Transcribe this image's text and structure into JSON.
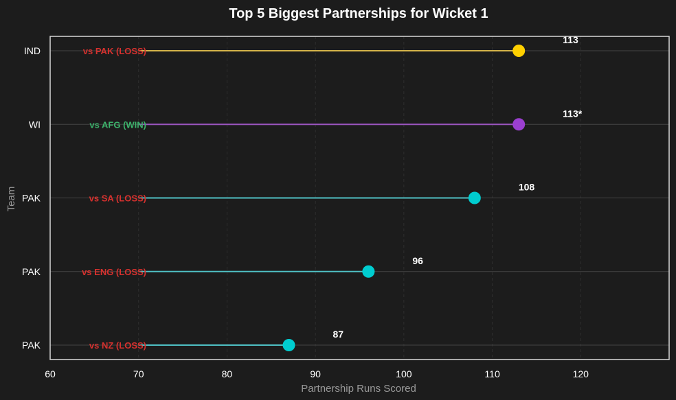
{
  "chart_data": {
    "type": "lollipop",
    "title": "Top 5 Biggest Partnerships for Wicket 1",
    "xlabel": "Partnership Runs Scored",
    "ylabel": "Team",
    "xlim": [
      60,
      130
    ],
    "xticks": [
      60,
      70,
      80,
      90,
      100,
      110,
      120
    ],
    "grid": true,
    "rows": [
      {
        "team": "IND",
        "runs": 113,
        "value_label": "113",
        "result": "vs PAK (LOSS)",
        "result_type": "loss",
        "color": "#ffd000",
        "stem_color": "#d4b44a"
      },
      {
        "team": "WI",
        "runs": 113,
        "value_label": "113*",
        "result": "vs AFG (WIN)",
        "result_type": "win",
        "color": "#9b3fd0",
        "stem_color": "#9b55c0"
      },
      {
        "team": "PAK",
        "runs": 108,
        "value_label": "108",
        "result": "vs SA (LOSS)",
        "result_type": "loss",
        "color": "#00cdd0",
        "stem_color": "#4fc0c4"
      },
      {
        "team": "PAK",
        "runs": 96,
        "value_label": "96",
        "result": "vs ENG (LOSS)",
        "result_type": "loss",
        "color": "#00cdd0",
        "stem_color": "#4fc0c4"
      },
      {
        "team": "PAK",
        "runs": 87,
        "value_label": "87",
        "result": "vs NZ (LOSS)",
        "result_type": "loss",
        "color": "#00cdd0",
        "stem_color": "#4fc0c4"
      }
    ],
    "colors": {
      "loss": "#d6312e",
      "win": "#3cb36b",
      "background": "#1c1c1c",
      "text": "#ffffff",
      "axis_label": "#9a9a9a"
    }
  }
}
